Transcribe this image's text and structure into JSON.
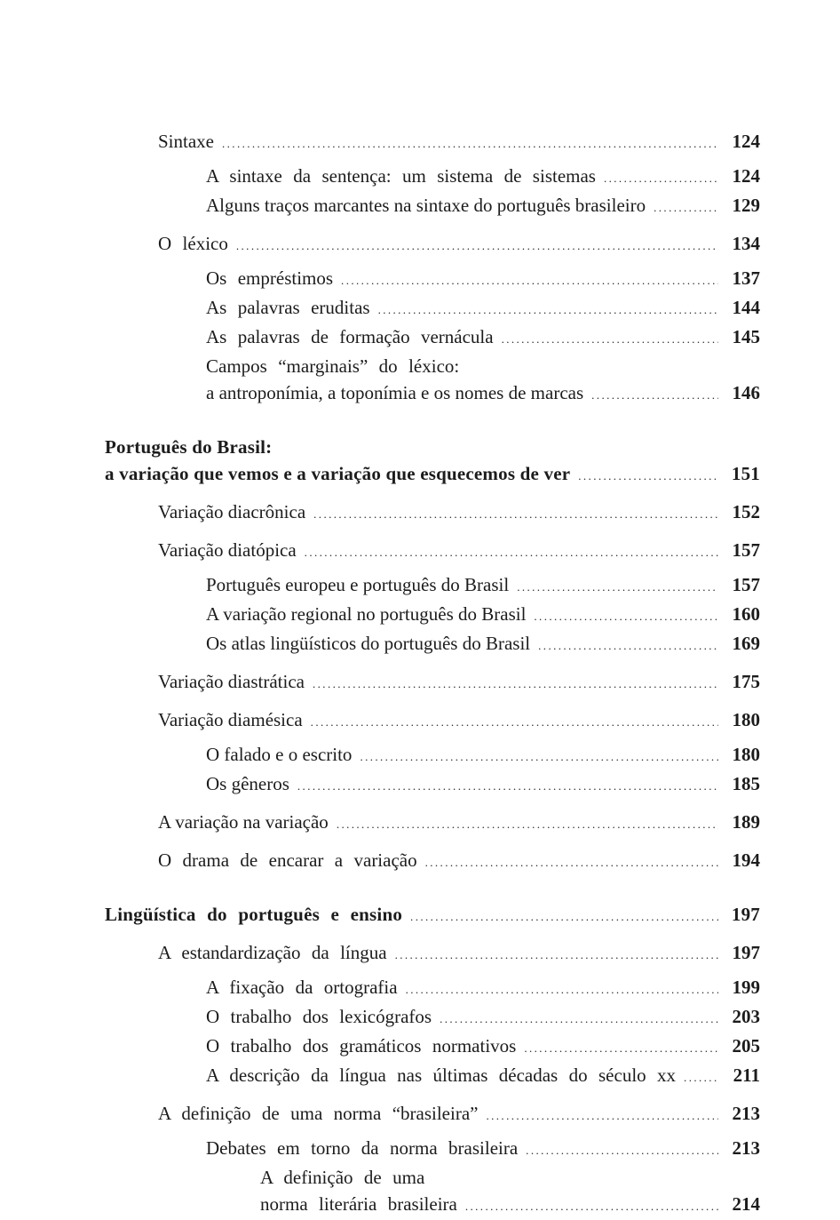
{
  "page": {
    "background": "#ffffff",
    "text_color": "#1c1c1c"
  },
  "toc": {
    "entries": [
      {
        "label": "Sintaxe",
        "page": "124",
        "level": 2,
        "space": "line",
        "bold": false,
        "wide": false,
        "leader": true
      },
      {
        "label": "A sintaxe da sentença: um sistema de sistemas",
        "page": "124",
        "level": 3,
        "space": "group",
        "bold": false,
        "wide": true,
        "leader": true
      },
      {
        "label": "Alguns traços marcantes na sintaxe do português brasileiro",
        "page": "129",
        "level": 3,
        "space": "line",
        "bold": false,
        "wide": false,
        "leader": true
      },
      {
        "label": "O léxico",
        "page": "134",
        "level": 2,
        "space": "section",
        "bold": false,
        "wide": true,
        "leader": true
      },
      {
        "label": "Os empréstimos",
        "page": "137",
        "level": 3,
        "space": "group",
        "bold": false,
        "wide": true,
        "leader": true
      },
      {
        "label": "As palavras eruditas",
        "page": "144",
        "level": 3,
        "space": "line",
        "bold": false,
        "wide": true,
        "leader": true
      },
      {
        "label": "As palavras de formação vernácula",
        "page": "145",
        "level": 3,
        "space": "line",
        "bold": false,
        "wide": true,
        "leader": true
      },
      {
        "label": "Campos “marginais” do léxico:",
        "page": null,
        "level": 3,
        "space": "line",
        "bold": false,
        "wide": true,
        "leader": false
      },
      {
        "label": "a antroponímia, a toponímia e os nomes de marcas",
        "page": "146",
        "level": 3,
        "space": "line",
        "bold": false,
        "wide": false,
        "leader": true
      },
      {
        "label": "Português do Brasil:",
        "page": null,
        "level": 1,
        "space": "chapter",
        "bold": true,
        "wide": false,
        "leader": false
      },
      {
        "label": "a variação que vemos e a variação que esquecemos de ver",
        "page": "151",
        "level": 1,
        "space": "line",
        "bold": true,
        "wide": false,
        "leader": true
      },
      {
        "label": "Variação diacrônica",
        "page": "152",
        "level": 2,
        "space": "section",
        "bold": false,
        "wide": false,
        "leader": true
      },
      {
        "label": "Variação diatópica",
        "page": "157",
        "level": 2,
        "space": "section",
        "bold": false,
        "wide": false,
        "leader": true
      },
      {
        "label": "Português europeu e português do Brasil",
        "page": "157",
        "level": 3,
        "space": "group",
        "bold": false,
        "wide": false,
        "leader": true
      },
      {
        "label": "A variação regional no português do Brasil",
        "page": "160",
        "level": 3,
        "space": "line",
        "bold": false,
        "wide": false,
        "leader": true
      },
      {
        "label": "Os atlas lingüísticos do português do Brasil",
        "page": "169",
        "level": 3,
        "space": "line",
        "bold": false,
        "wide": false,
        "leader": true
      },
      {
        "label": "Variação diastrática",
        "page": "175",
        "level": 2,
        "space": "section",
        "bold": false,
        "wide": false,
        "leader": true
      },
      {
        "label": "Variação diamésica",
        "page": "180",
        "level": 2,
        "space": "section",
        "bold": false,
        "wide": false,
        "leader": true
      },
      {
        "label": "O falado e o escrito",
        "page": "180",
        "level": 3,
        "space": "group",
        "bold": false,
        "wide": false,
        "leader": true
      },
      {
        "label": "Os gêneros",
        "page": "185",
        "level": 3,
        "space": "line",
        "bold": false,
        "wide": false,
        "leader": true
      },
      {
        "label": "A variação na variação",
        "page": "189",
        "level": 2,
        "space": "section",
        "bold": false,
        "wide": false,
        "leader": true
      },
      {
        "label": "O drama de encarar a variação",
        "page": "194",
        "level": 2,
        "space": "section",
        "bold": false,
        "wide": true,
        "leader": true
      },
      {
        "label": "Lingüística do português e ensino",
        "page": "197",
        "level": 1,
        "space": "chapter",
        "bold": true,
        "wide": true,
        "leader": true
      },
      {
        "label": "A estandardização da língua",
        "page": "197",
        "level": 2,
        "space": "section",
        "bold": false,
        "wide": true,
        "leader": true
      },
      {
        "label": "A fixação da ortografia",
        "page": "199",
        "level": 3,
        "space": "group",
        "bold": false,
        "wide": true,
        "leader": true
      },
      {
        "label": "O trabalho dos lexicógrafos",
        "page": "203",
        "level": 3,
        "space": "line",
        "bold": false,
        "wide": true,
        "leader": true
      },
      {
        "label": "O trabalho dos gramáticos normativos",
        "page": "205",
        "level": 3,
        "space": "line",
        "bold": false,
        "wide": true,
        "leader": true
      },
      {
        "label": "A descrição da língua nas últimas décadas do século xx",
        "page": "211",
        "level": 3,
        "space": "line",
        "bold": false,
        "wide": true,
        "leader": true
      },
      {
        "label": "A definição de uma norma “brasileira”",
        "page": "213",
        "level": 2,
        "space": "section",
        "bold": false,
        "wide": true,
        "leader": true
      },
      {
        "label": "Debates em torno da norma brasileira",
        "page": "213",
        "level": 3,
        "space": "group",
        "bold": false,
        "wide": true,
        "leader": true
      },
      {
        "label": "A definição de uma",
        "page": null,
        "level": 4,
        "space": "line",
        "bold": false,
        "wide": true,
        "leader": false
      },
      {
        "label": "norma literária brasileira",
        "page": "214",
        "level": 4,
        "space": "line",
        "bold": false,
        "wide": true,
        "leader": true
      }
    ]
  }
}
